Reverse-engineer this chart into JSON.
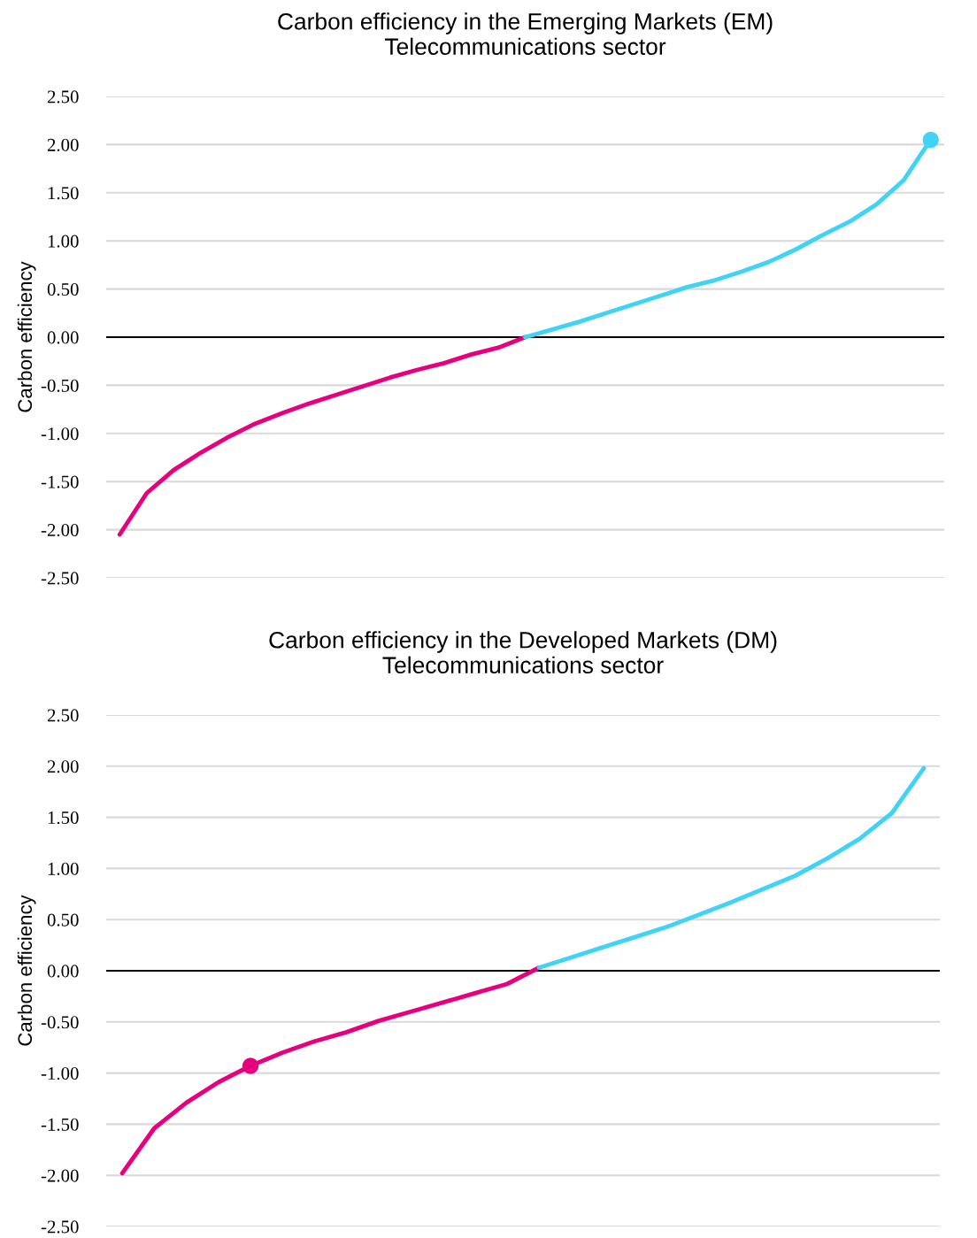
{
  "chart_data": [
    {
      "type": "line",
      "title": "Carbon efficiency in the Emerging Markets (EM)\nTelecommunications sector",
      "ylabel": "Carbon efficiency",
      "categories": [
        null,
        null,
        null,
        null,
        null,
        null,
        null,
        null,
        null,
        null,
        null,
        null,
        null,
        null,
        null,
        null,
        null,
        null,
        null,
        null,
        null,
        null,
        null,
        null,
        null,
        null,
        null,
        null,
        null,
        null,
        null
      ],
      "series": [
        {
          "color": "#e6007e",
          "values": [
            -2.05,
            -1.62,
            -1.38,
            -1.2,
            -1.04,
            -0.9,
            -0.79,
            -0.69,
            -0.6,
            -0.51,
            -0.42,
            -0.34,
            -0.27,
            -0.18,
            -0.11,
            0.0,
            null,
            null,
            null,
            null,
            null,
            null,
            null,
            null,
            null,
            null,
            null,
            null,
            null,
            null,
            null
          ]
        },
        {
          "color": "#41d3f5",
          "values": [
            null,
            null,
            null,
            null,
            null,
            null,
            null,
            null,
            null,
            null,
            null,
            null,
            null,
            null,
            null,
            0.0,
            0.08,
            0.16,
            0.25,
            0.34,
            0.43,
            0.52,
            0.59,
            0.68,
            0.78,
            0.91,
            1.06,
            1.2,
            1.38,
            1.63,
            2.05
          ]
        },
        {
          "type": "scatter",
          "color": "#41d3f5",
          "marker": "circle",
          "values": [
            null,
            null,
            null,
            null,
            null,
            null,
            null,
            null,
            null,
            null,
            null,
            null,
            null,
            null,
            null,
            null,
            null,
            null,
            null,
            null,
            null,
            null,
            null,
            null,
            null,
            null,
            null,
            null,
            null,
            null,
            2.05
          ]
        }
      ],
      "ylim": [
        -2.5,
        2.5
      ],
      "yticks": [
        {
          "value": -2.5,
          "label": "-2.50"
        },
        {
          "value": -2.0,
          "label": "-2.00"
        },
        {
          "value": -1.5,
          "label": "-1.50"
        },
        {
          "value": -1.0,
          "label": "-1.00"
        },
        {
          "value": -0.5,
          "label": "-0.50"
        },
        {
          "value": 0.0,
          "label": "0.00"
        },
        {
          "value": 0.5,
          "label": "0.50"
        },
        {
          "value": 1.0,
          "label": "1.00"
        },
        {
          "value": 1.5,
          "label": "1.50"
        },
        {
          "value": 2.0,
          "label": "2.00"
        },
        {
          "value": 2.5,
          "label": "2.50"
        }
      ],
      "ref_lines": [
        {
          "axis": "y",
          "value": 0.0,
          "color": "#000000"
        }
      ],
      "grid": "y",
      "tick_labels": "y",
      "line_style": "solid",
      "legend": false
    },
    {
      "type": "line",
      "title": "Carbon efficiency in the Developed Markets (DM)\nTelecommunications sector",
      "ylabel": "Carbon efficiency",
      "categories": [
        null,
        null,
        null,
        null,
        null,
        null,
        null,
        null,
        null,
        null,
        null,
        null,
        null,
        null,
        null,
        null,
        null,
        null,
        null,
        null,
        null,
        null,
        null,
        null,
        null,
        null
      ],
      "series": [
        {
          "color": "#e6007e",
          "values": [
            -1.98,
            -1.54,
            -1.29,
            -1.09,
            -0.93,
            -0.8,
            -0.69,
            -0.6,
            -0.49,
            -0.4,
            -0.31,
            -0.22,
            -0.13,
            0.03,
            null,
            null,
            null,
            null,
            null,
            null,
            null,
            null,
            null,
            null,
            null,
            null
          ]
        },
        {
          "color": "#41d3f5",
          "values": [
            null,
            null,
            null,
            null,
            null,
            null,
            null,
            null,
            null,
            null,
            null,
            null,
            null,
            0.03,
            0.13,
            0.23,
            0.33,
            0.43,
            0.55,
            0.67,
            0.8,
            0.93,
            1.1,
            1.29,
            1.54,
            1.98
          ]
        },
        {
          "type": "scatter",
          "color": "#e6007e",
          "marker": "circle",
          "values": [
            null,
            null,
            null,
            null,
            -0.93,
            null,
            null,
            null,
            null,
            null,
            null,
            null,
            null,
            null,
            null,
            null,
            null,
            null,
            null,
            null,
            null,
            null,
            null,
            null,
            null,
            null
          ]
        }
      ],
      "ylim": [
        -2.5,
        2.5
      ],
      "yticks": [
        {
          "value": -2.5,
          "label": "-2.50"
        },
        {
          "value": -2.0,
          "label": "-2.00"
        },
        {
          "value": -1.5,
          "label": "-1.50"
        },
        {
          "value": -1.0,
          "label": "-1.00"
        },
        {
          "value": -0.5,
          "label": "-0.50"
        },
        {
          "value": 0.0,
          "label": "0.00"
        },
        {
          "value": 0.5,
          "label": "0.50"
        },
        {
          "value": 1.0,
          "label": "1.00"
        },
        {
          "value": 1.5,
          "label": "1.50"
        },
        {
          "value": 2.0,
          "label": "2.00"
        },
        {
          "value": 2.5,
          "label": "2.50"
        }
      ],
      "ref_lines": [
        {
          "axis": "y",
          "value": 0.0,
          "color": "#000000"
        }
      ],
      "grid": "y",
      "tick_labels": "y",
      "line_style": "solid",
      "legend": false
    }
  ]
}
